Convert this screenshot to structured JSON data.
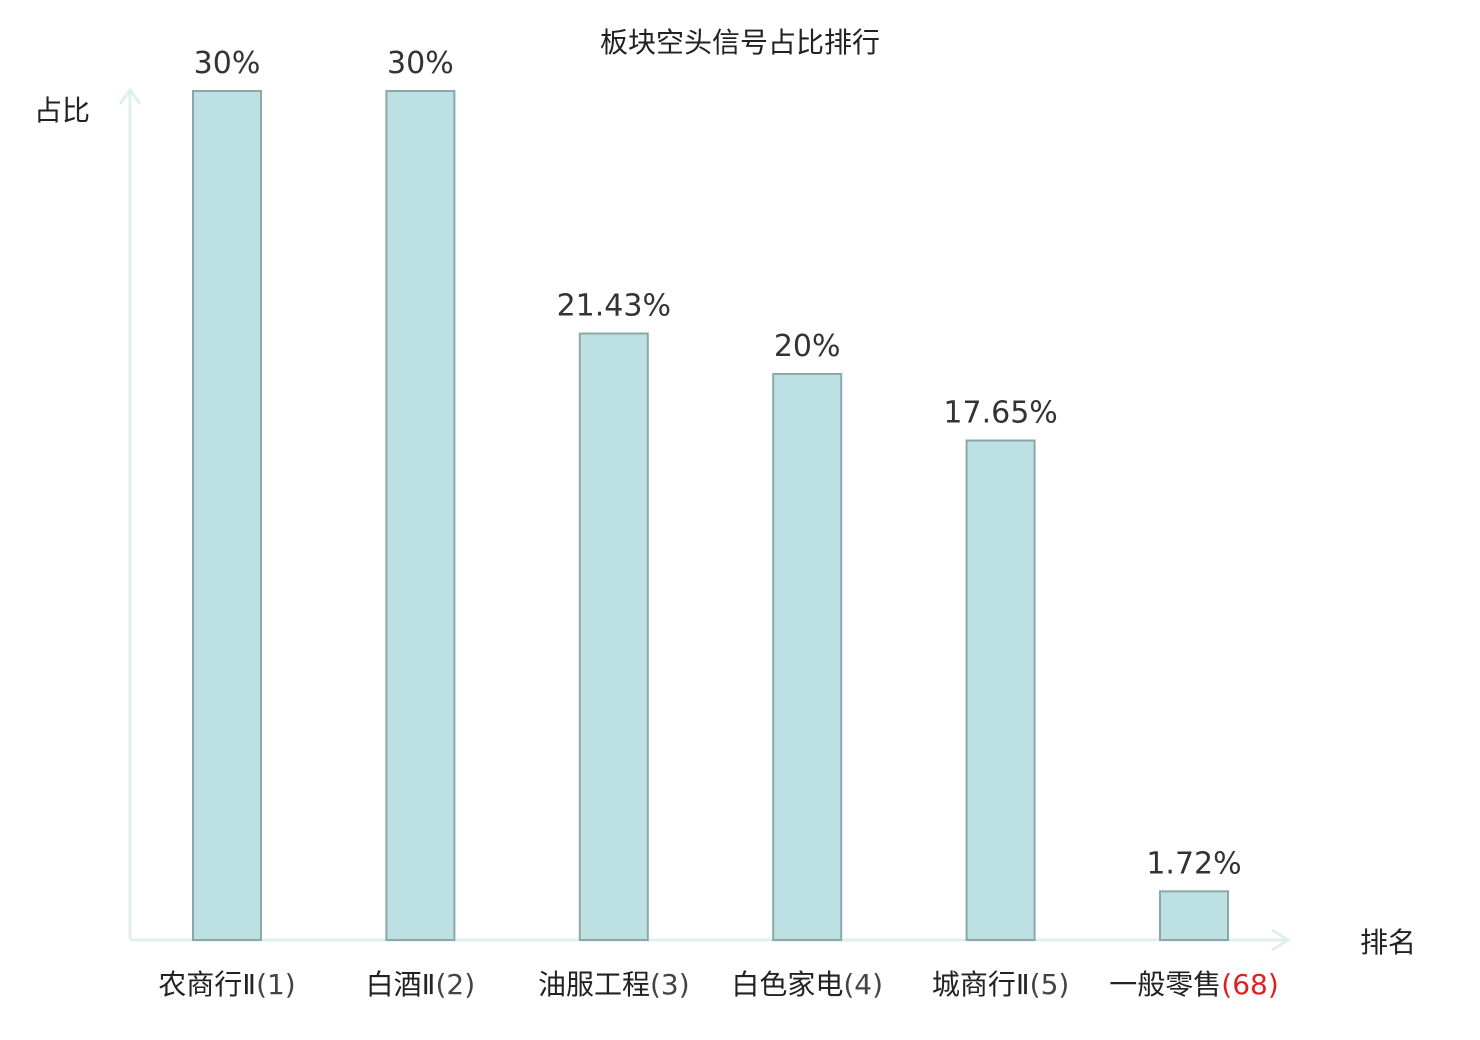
{
  "chart_data": {
    "type": "bar",
    "title": "板块空头信号占比排行",
    "xlabel": "排名",
    "ylabel": "占比",
    "ylim": [
      0,
      30
    ],
    "grid": false,
    "legend": "none",
    "categories": [
      {
        "name": "农商行Ⅱ",
        "rank": "(1)",
        "highlight": false
      },
      {
        "name": "白酒Ⅱ",
        "rank": "(2)",
        "highlight": false
      },
      {
        "name": "油服工程",
        "rank": "(3)",
        "highlight": false
      },
      {
        "name": "白色家电",
        "rank": "(4)",
        "highlight": false
      },
      {
        "name": "城商行Ⅱ",
        "rank": "(5)",
        "highlight": false
      },
      {
        "name": "一般零售",
        "rank": "(68)",
        "highlight": true
      }
    ],
    "values": [
      30,
      30,
      21.43,
      20,
      17.65,
      1.72
    ],
    "value_labels": [
      "30%",
      "30%",
      "21.43%",
      "20%",
      "17.65%",
      "1.72%"
    ],
    "colors": {
      "bar_fill": "#bde1e3",
      "bar_stroke": "#8aa8aa",
      "axis": "#dff0ee",
      "highlight": "#e02020"
    }
  }
}
